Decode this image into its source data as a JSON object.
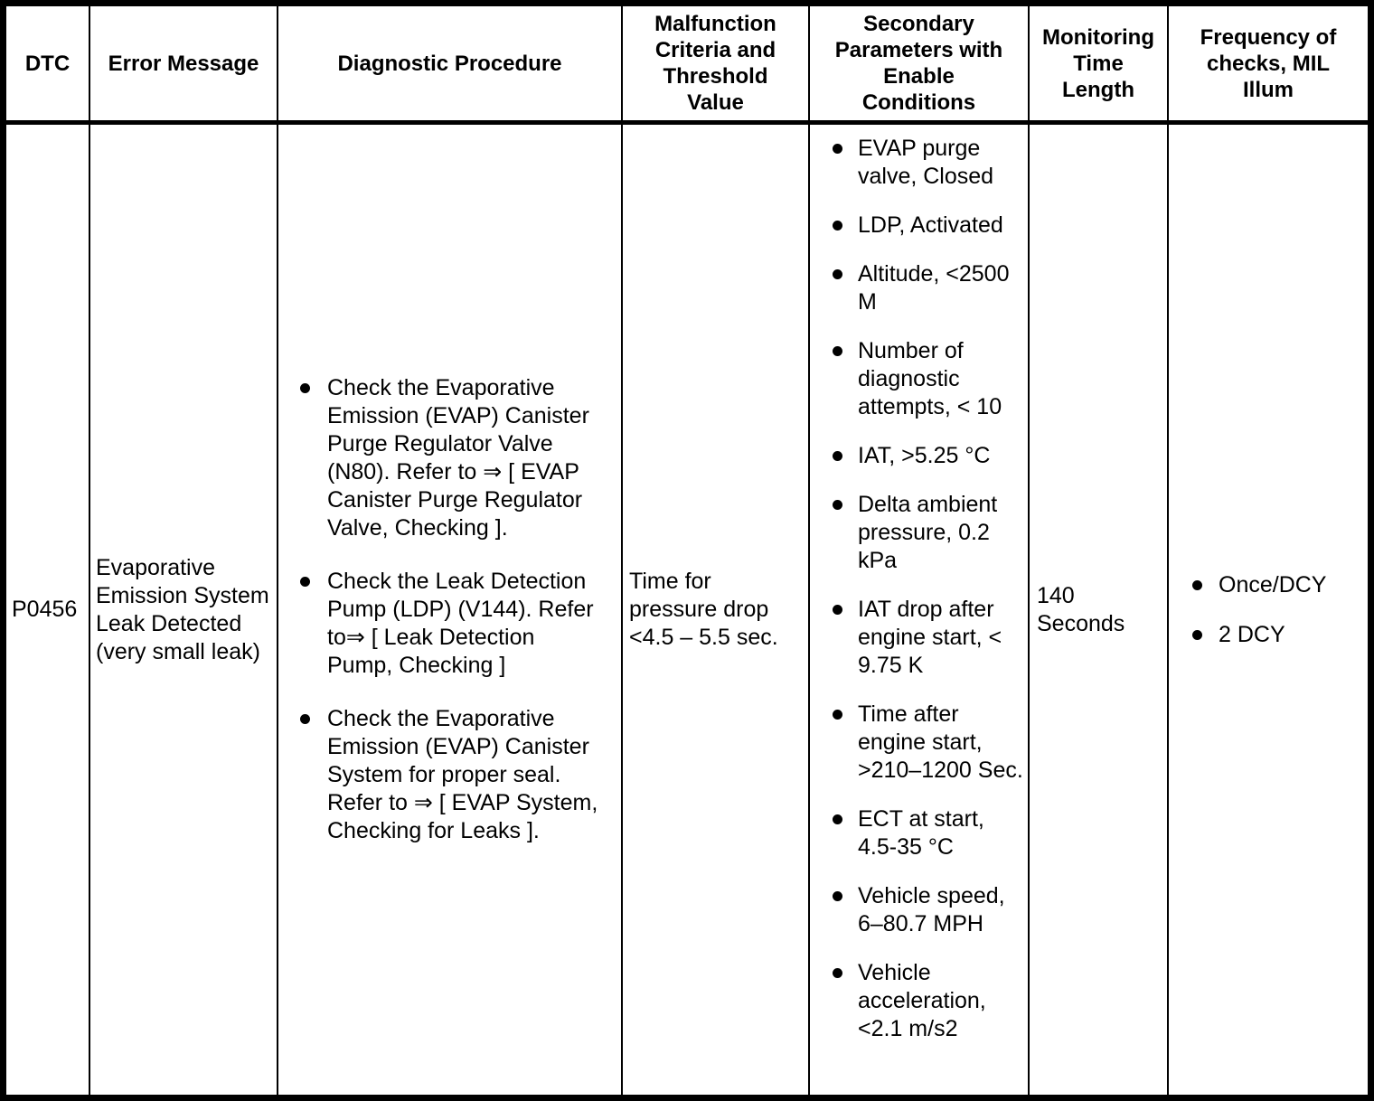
{
  "colors": {
    "border": "#000000",
    "background": "#ffffff",
    "text": "#000000"
  },
  "table": {
    "headers": [
      "DTC",
      "Error Message",
      "Diagnostic Procedure",
      "Malfunction Criteria and Threshold Value",
      "Secondary Parameters with Enable Conditions",
      "Monitoring Time Length",
      "Frequency of checks, MIL Illum"
    ],
    "row": {
      "dtc": "P0456",
      "error_message": "Evaporative Emission System Leak Detected (very small leak)",
      "diagnostic_procedure": [
        "Check the Evaporative Emission (EVAP) Canister Purge Regulator Valve (N80). Refer to ⇒ [ EVAP Canister Purge Regulator Valve, Checking ].",
        "Check the Leak Detection Pump (LDP) (V144). Refer to⇒ [ Leak Detection Pump, Checking ]",
        "Check the Evaporative Emission (EVAP) Canister System for proper seal. Refer to ⇒ [ EVAP System, Checking for Leaks ]."
      ],
      "malfunction_criteria": "Time for pressure drop <4.5 – 5.5 sec.",
      "secondary_parameters": [
        "EVAP purge valve, Closed",
        "LDP, Activated",
        "Altitude, <2500 M",
        "Number of diagnostic attempts, < 10",
        "IAT, >5.25 °C",
        "Delta ambient pressure, 0.2 kPa",
        "IAT drop after engine start, < 9.75 K",
        "Time after engine start, >210–1200 Sec.",
        "ECT at start, 4.5-35 °C",
        "Vehicle speed, 6–80.7 MPH",
        "Vehicle acceleration, <2.1 m/s2"
      ],
      "monitoring_time": "140 Seconds",
      "frequency": [
        "Once/DCY",
        "2 DCY"
      ]
    }
  }
}
